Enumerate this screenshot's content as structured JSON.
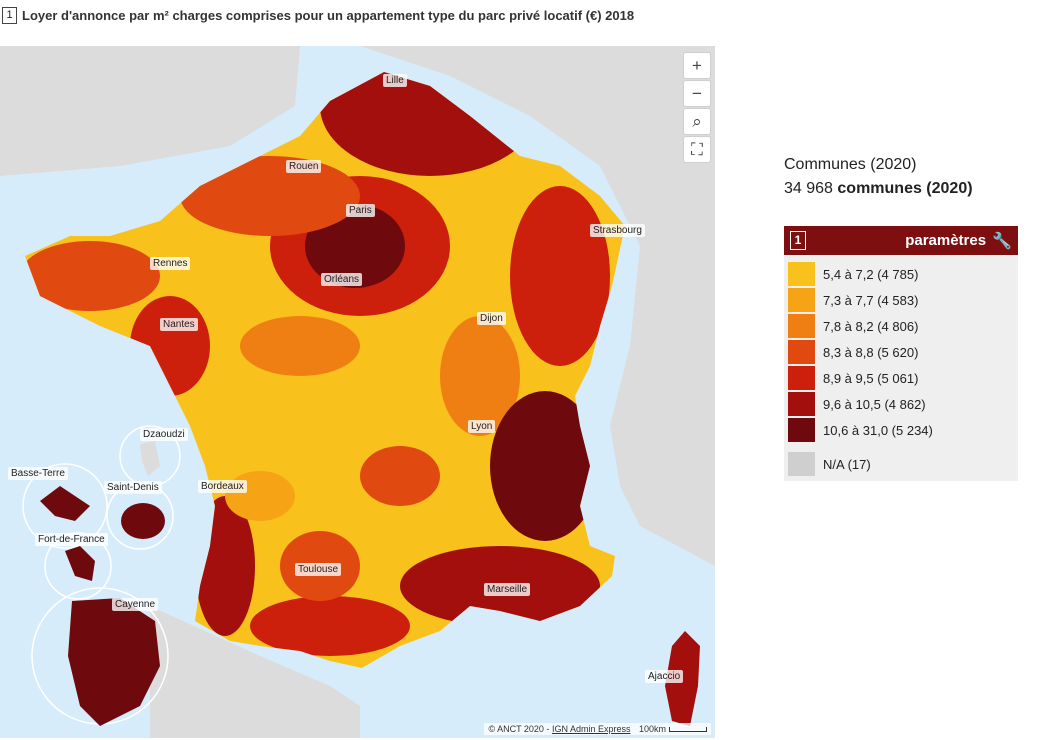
{
  "title": {
    "badge": "1",
    "text": "Loyer d'annonce par m² charges comprises pour un appartement type du parc privé locatif (€) 2018"
  },
  "map": {
    "sea_color": "#d6ecfa",
    "land_color": "#dcdcdc",
    "controls": [
      {
        "name": "zoom-in-button",
        "icon": "plus-icon",
        "glyph": "+"
      },
      {
        "name": "zoom-out-button",
        "icon": "minus-icon",
        "glyph": "−"
      },
      {
        "name": "search-button",
        "icon": "search-icon",
        "glyph": "⌕"
      },
      {
        "name": "fullscreen-button",
        "icon": "fullscreen-icon",
        "glyph": "⛶"
      }
    ],
    "cities": [
      "Lille",
      "Rouen",
      "Paris",
      "Strasbourg",
      "Rennes",
      "Orléans",
      "Nantes",
      "Dijon",
      "Lyon",
      "Bordeaux",
      "Toulouse",
      "Marseille",
      "Ajaccio",
      "Dzaoudzi",
      "Basse-Terre",
      "Saint-Denis",
      "Fort-de-France",
      "Cayenne"
    ],
    "attribution": {
      "text": "© ANCT 2020 - ",
      "link": "IGN Admin Express",
      "scale": "100km"
    }
  },
  "info": {
    "line1": "Communes (2020)",
    "count": "34 968",
    "count_label": "communes (2020)"
  },
  "legend": {
    "badge": "1",
    "header": "paramètres",
    "header_color": "#7e0f10",
    "classes": [
      {
        "label": "5,4 à 7,2 (4 785)",
        "color": "#f9c11c"
      },
      {
        "label": "7,3 à 7,7 (4 583)",
        "color": "#f6a316"
      },
      {
        "label": "7,8 à 8,2 (4 806)",
        "color": "#ef7f13"
      },
      {
        "label": "8,3 à 8,8 (5 620)",
        "color": "#e04a10"
      },
      {
        "label": "8,9 à 9,5 (5 061)",
        "color": "#cc1f0c"
      },
      {
        "label": "9,6 à 10,5 (4 862)",
        "color": "#a20f0c"
      },
      {
        "label": "10,6 à 31,0 (5 234)",
        "color": "#6e0a0e"
      }
    ],
    "na": {
      "label": "N/A (17)",
      "color": "#cfcfcf"
    }
  }
}
